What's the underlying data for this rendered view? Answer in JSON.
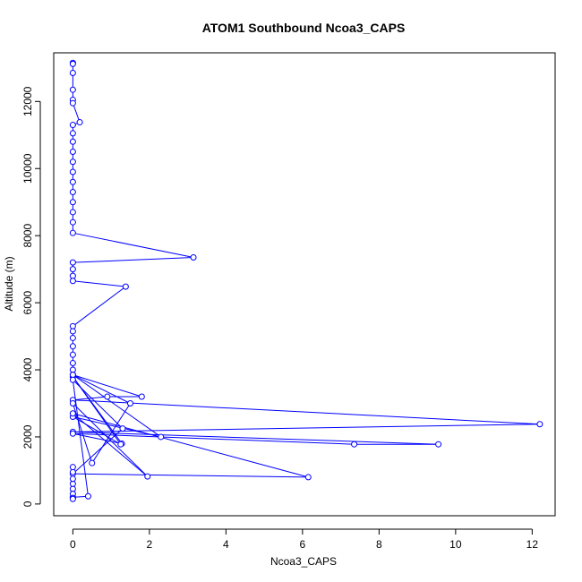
{
  "chart_data": {
    "type": "scatter",
    "title": "ATOM1 Southbound Ncoa3_CAPS",
    "xlabel": "Ncoa3_CAPS",
    "ylabel": "Altitude (m)",
    "xlim": [
      -0.5,
      12.6
    ],
    "ylim": [
      -350,
      13450
    ],
    "x_ticks": [
      0,
      2,
      4,
      6,
      8,
      10,
      12
    ],
    "y_ticks": [
      0,
      2000,
      4000,
      6000,
      8000,
      10000,
      12000
    ],
    "color": "#0000ff",
    "marker": "open-circle",
    "connected": true,
    "series": [
      {
        "points": [
          [
            0,
            13150
          ],
          [
            0,
            13120
          ],
          [
            0,
            12850
          ],
          [
            0,
            12350
          ],
          [
            0,
            12050
          ],
          [
            0,
            11950
          ],
          [
            0.18,
            11380
          ],
          [
            0,
            11300
          ],
          [
            0,
            11050
          ],
          [
            0,
            10800
          ],
          [
            0,
            10500
          ],
          [
            0,
            10200
          ],
          [
            0,
            9900
          ],
          [
            0,
            9600
          ],
          [
            0,
            9300
          ],
          [
            0,
            9000
          ],
          [
            0,
            8700
          ],
          [
            0,
            8400
          ],
          [
            0,
            8080
          ],
          [
            3.15,
            7350
          ],
          [
            0,
            7200
          ],
          [
            0,
            7000
          ],
          [
            0,
            6800
          ],
          [
            0,
            6650
          ],
          [
            1.38,
            6480
          ],
          [
            0,
            5300
          ],
          [
            0,
            5150
          ],
          [
            0,
            4950
          ],
          [
            0,
            4700
          ],
          [
            0,
            4450
          ],
          [
            0,
            4200
          ],
          [
            0,
            4000
          ],
          [
            0,
            3850
          ],
          [
            1.8,
            3200
          ],
          [
            0.9,
            3200
          ],
          [
            0,
            3100
          ],
          [
            12.2,
            2380
          ],
          [
            0,
            2150
          ],
          [
            9.55,
            1780
          ],
          [
            7.35,
            1780
          ],
          [
            0,
            2100
          ],
          [
            1.28,
            1800
          ],
          [
            0,
            3800
          ],
          [
            1.25,
            1780
          ],
          [
            0,
            2600
          ],
          [
            2.3,
            2000
          ],
          [
            0,
            3850
          ],
          [
            1.5,
            3000
          ],
          [
            0.5,
            1220
          ],
          [
            0,
            3000
          ],
          [
            1.95,
            820
          ],
          [
            0,
            2700
          ],
          [
            6.15,
            800
          ],
          [
            0,
            900
          ],
          [
            1.3,
            2250
          ],
          [
            0,
            3700
          ],
          [
            0.4,
            230
          ],
          [
            0,
            200
          ],
          [
            0,
            450
          ],
          [
            0,
            600
          ],
          [
            0,
            750
          ],
          [
            0,
            950
          ],
          [
            0,
            1100
          ],
          [
            0,
            300
          ],
          [
            0,
            180
          ],
          [
            0,
            150
          ]
        ]
      }
    ]
  }
}
